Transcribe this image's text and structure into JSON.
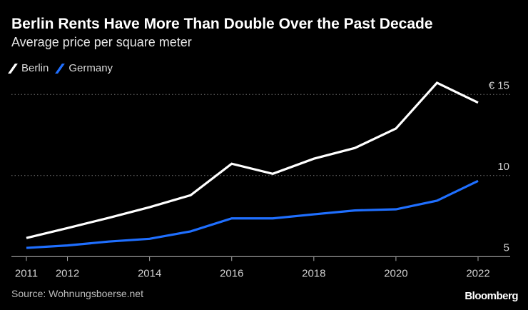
{
  "header": {
    "title": "Berlin Rents Have More Than Double Over the Past Decade",
    "subtitle": "Average price per square meter"
  },
  "footer": {
    "source": "Source: Wohnungsboerse.net",
    "logo": "Bloomberg"
  },
  "chart_data": {
    "type": "line",
    "title": "Berlin Rents Have More Than Double Over the Past Decade",
    "subtitle": "Average price per square meter",
    "x": [
      2011,
      2012,
      2013,
      2014,
      2015,
      2016,
      2017,
      2018,
      2019,
      2020,
      2021,
      2022
    ],
    "x_ticks": [
      "2011",
      "2012",
      "2014",
      "2016",
      "2018",
      "2020",
      "2022"
    ],
    "y_ticks": [
      "5",
      "10",
      "€ 15"
    ],
    "y_tick_values": [
      5,
      10,
      15
    ],
    "ylim": [
      5,
      15.9
    ],
    "grid": "horizontal dotted",
    "legend_position": "top-left",
    "series": [
      {
        "name": "Berlin",
        "color": "#ffffff",
        "values": [
          6.15,
          6.76,
          7.39,
          8.05,
          8.79,
          10.73,
          10.11,
          11.04,
          11.7,
          12.9,
          15.72,
          14.5
        ]
      },
      {
        "name": "Germany",
        "color": "#1f6fff",
        "values": [
          5.54,
          5.69,
          5.93,
          6.1,
          6.56,
          7.36,
          7.36,
          7.61,
          7.85,
          7.92,
          8.45,
          9.67
        ]
      }
    ]
  }
}
